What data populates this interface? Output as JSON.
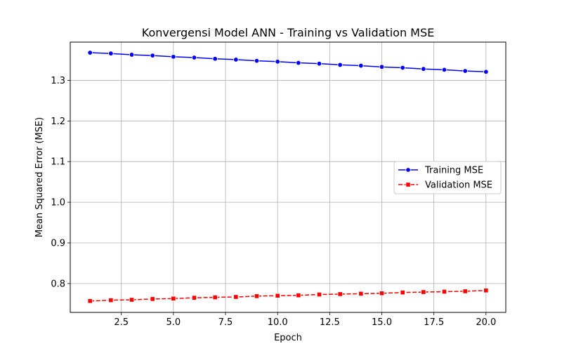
{
  "chart_data": {
    "type": "line",
    "title": "Konvergensi Model ANN - Training vs Validation MSE",
    "xlabel": "Epoch",
    "ylabel": "Mean Squared Error (MSE)",
    "xlim": [
      0.05,
      20.95
    ],
    "ylim": [
      0.729,
      1.394
    ],
    "x_ticks": [
      2.5,
      5.0,
      7.5,
      10.0,
      12.5,
      15.0,
      17.5,
      20.0
    ],
    "x_tick_labels": [
      "2.5",
      "5.0",
      "7.5",
      "10.0",
      "12.5",
      "15.0",
      "17.5",
      "20.0"
    ],
    "y_ticks": [
      0.8,
      0.9,
      1.0,
      1.1,
      1.2,
      1.3
    ],
    "y_tick_labels": [
      "0.8",
      "0.9",
      "1.0",
      "1.1",
      "1.2",
      "1.3"
    ],
    "grid": true,
    "legend_position": "center-right",
    "x": [
      1,
      2,
      3,
      4,
      5,
      6,
      7,
      8,
      9,
      10,
      11,
      12,
      13,
      14,
      15,
      16,
      17,
      18,
      19,
      20
    ],
    "series": [
      {
        "name": "Training MSE",
        "color": "#0000ff",
        "line_style": "solid",
        "marker": "circle",
        "values": [
          1.368,
          1.366,
          1.363,
          1.361,
          1.358,
          1.356,
          1.353,
          1.351,
          1.348,
          1.346,
          1.343,
          1.341,
          1.338,
          1.336,
          1.333,
          1.331,
          1.328,
          1.326,
          1.323,
          1.321
        ]
      },
      {
        "name": "Validation MSE",
        "color": "#ff0000",
        "line_style": "dashed",
        "marker": "square",
        "values": [
          0.757,
          0.759,
          0.76,
          0.762,
          0.763,
          0.765,
          0.766,
          0.767,
          0.769,
          0.77,
          0.771,
          0.773,
          0.774,
          0.775,
          0.776,
          0.778,
          0.779,
          0.78,
          0.781,
          0.783
        ]
      }
    ]
  }
}
